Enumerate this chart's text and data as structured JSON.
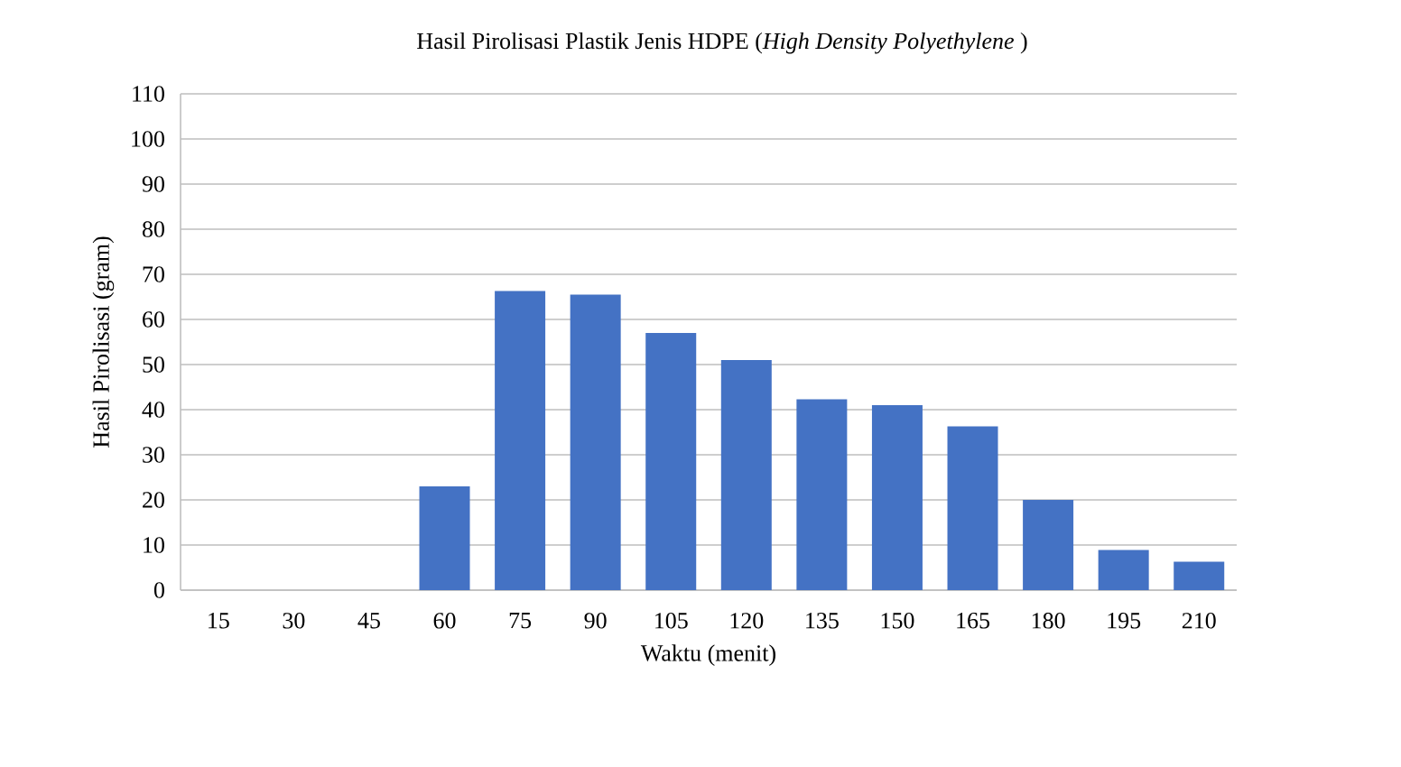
{
  "chart_data": {
    "type": "bar",
    "title": "Hasil Pirolisasi Plastik Jenis HDPE (*High  Density Polyethylene* )",
    "xlabel": "Waktu (menit)",
    "ylabel": "Hasil Pirolisasi (gram)",
    "categories": [
      "15",
      "30",
      "45",
      "60",
      "75",
      "90",
      "105",
      "120",
      "135",
      "150",
      "165",
      "180",
      "195",
      "210"
    ],
    "values": [
      0,
      0,
      0,
      23,
      66.3,
      65.5,
      57,
      51,
      42.3,
      41,
      36.3,
      20,
      8.9,
      6.3
    ],
    "color": "#4472c4",
    "ylim": [
      0,
      110
    ],
    "yticks": [
      0,
      10,
      20,
      30,
      40,
      50,
      60,
      70,
      80,
      90,
      100,
      110
    ],
    "grid": "y"
  }
}
